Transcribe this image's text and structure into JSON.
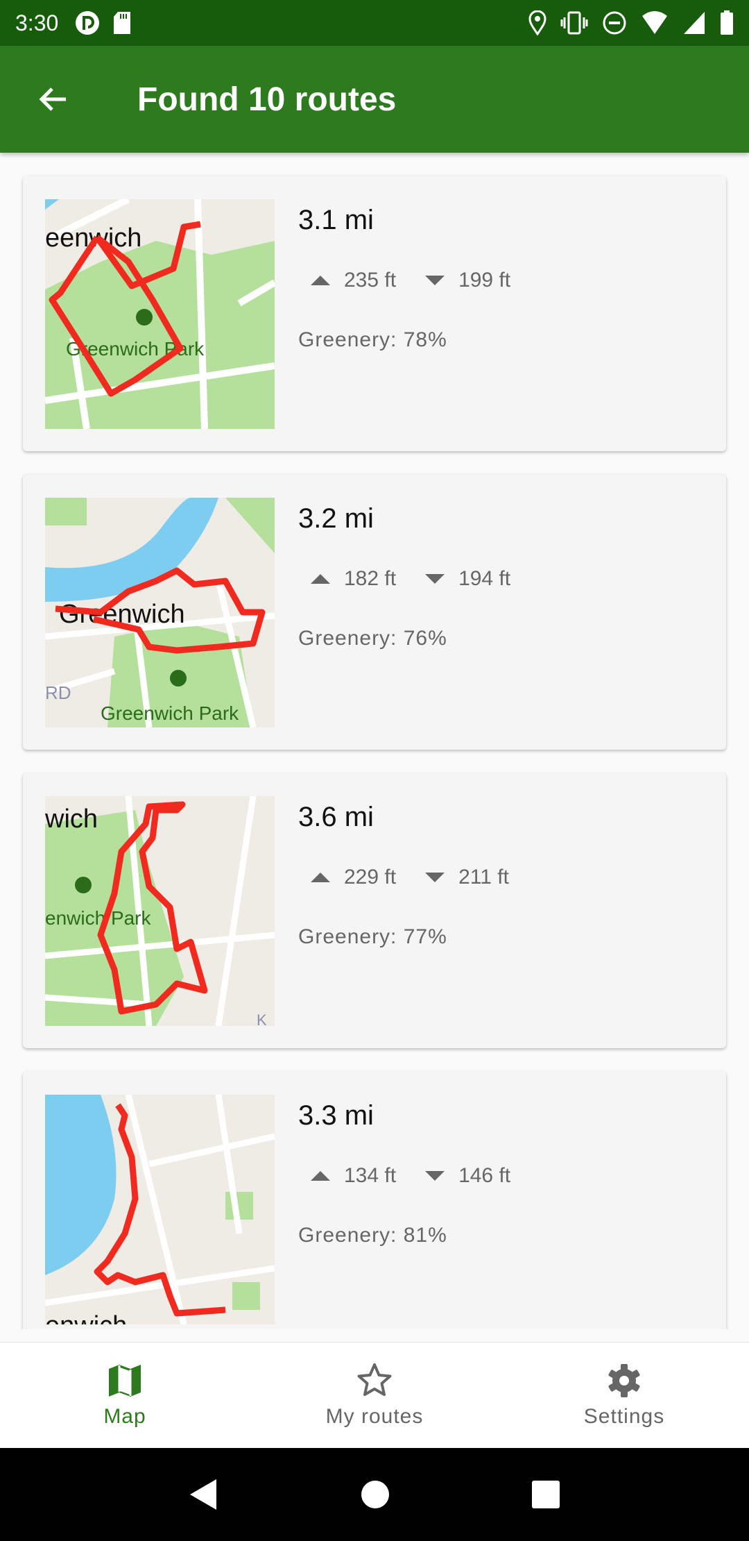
{
  "status_bar": {
    "time": "3:30",
    "icons": [
      "pocket-casts-icon",
      "sd-card-icon",
      "location-icon",
      "vibrate-icon",
      "do-not-disturb-icon",
      "wifi-icon",
      "signal-icon",
      "battery-icon"
    ]
  },
  "app_bar": {
    "title": "Found 10 routes",
    "back_icon": "arrow-back-icon"
  },
  "colors": {
    "primary": "#2e7a1f",
    "status_bar": "#165c0b",
    "route": "#f02a1e",
    "park": "#b4e09c",
    "water": "#7dcdf0"
  },
  "routes": [
    {
      "distance": "3.1 mi",
      "ascent": "235 ft",
      "descent": "199 ft",
      "greenery": "Greenery: 78%",
      "map_labels": [
        "eenwich",
        "Greenwich Park"
      ]
    },
    {
      "distance": "3.2 mi",
      "ascent": "182 ft",
      "descent": "194 ft",
      "greenery": "Greenery: 76%",
      "map_labels": [
        "Greenwich",
        "Greenwich Park",
        "RD"
      ]
    },
    {
      "distance": "3.6 mi",
      "ascent": "229 ft",
      "descent": "211 ft",
      "greenery": "Greenery: 77%",
      "map_labels": [
        "wich",
        "enwich Park",
        "K"
      ]
    },
    {
      "distance": "3.3 mi",
      "ascent": "134 ft",
      "descent": "146 ft",
      "greenery": "Greenery: 81%",
      "map_labels": [
        "enwich"
      ]
    }
  ],
  "bottom_nav": [
    {
      "label": "Map",
      "icon": "map-icon",
      "active": true
    },
    {
      "label": "My routes",
      "icon": "star-icon",
      "active": false
    },
    {
      "label": "Settings",
      "icon": "gear-icon",
      "active": false
    }
  ],
  "system_nav": [
    "back-icon",
    "home-icon",
    "recents-icon"
  ]
}
